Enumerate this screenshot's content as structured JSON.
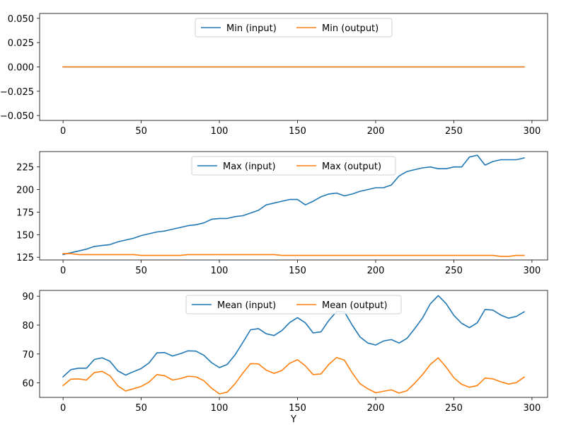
{
  "chart_data": [
    {
      "type": "line",
      "title": "",
      "xlabel": "",
      "ylabel": "",
      "xlim": [
        -15,
        310
      ],
      "ylim": [
        -0.055,
        0.055
      ],
      "xticks": [
        0,
        50,
        100,
        150,
        200,
        250,
        300
      ],
      "yticks": [
        -0.05,
        -0.025,
        0.0,
        0.025,
        0.05
      ],
      "ytick_labels": [
        "−0.050",
        "−0.025",
        "0.000",
        "0.025",
        "0.050"
      ],
      "legend_position": "top-center",
      "series": [
        {
          "name": "Min (input)",
          "color": "#1f77b4",
          "x": [
            0,
            295
          ],
          "y": [
            0,
            0
          ]
        },
        {
          "name": "Min (output)",
          "color": "#ff7f0e",
          "x": [
            0,
            295
          ],
          "y": [
            0,
            0
          ]
        }
      ]
    },
    {
      "type": "line",
      "title": "",
      "xlabel": "",
      "ylabel": "",
      "xlim": [
        -15,
        310
      ],
      "ylim": [
        122,
        242
      ],
      "xticks": [
        0,
        50,
        100,
        150,
        200,
        250,
        300
      ],
      "yticks": [
        125,
        150,
        175,
        200,
        225
      ],
      "ytick_labels": [
        "125",
        "150",
        "175",
        "200",
        "225"
      ],
      "legend_position": "top-center",
      "series": [
        {
          "name": "Max (input)",
          "color": "#1f77b4",
          "x": [
            0,
            5,
            10,
            15,
            20,
            25,
            30,
            35,
            40,
            45,
            50,
            55,
            60,
            65,
            70,
            75,
            80,
            85,
            90,
            95,
            100,
            105,
            110,
            115,
            120,
            125,
            130,
            135,
            140,
            145,
            150,
            155,
            160,
            165,
            170,
            175,
            180,
            185,
            190,
            195,
            200,
            205,
            210,
            215,
            220,
            225,
            230,
            235,
            240,
            245,
            250,
            255,
            260,
            265,
            270,
            275,
            280,
            285,
            290,
            295
          ],
          "y": [
            128,
            130,
            132,
            134,
            137,
            138,
            139,
            142,
            144,
            146,
            149,
            151,
            153,
            154,
            156,
            158,
            160,
            161,
            163,
            167,
            168,
            168,
            170,
            171,
            174,
            177,
            183,
            185,
            187,
            189,
            189,
            183,
            187,
            192,
            195,
            196,
            193,
            195,
            198,
            200,
            202,
            202,
            205,
            215,
            220,
            222,
            224,
            225,
            223,
            223,
            225,
            225,
            236,
            238,
            227,
            231,
            233,
            233,
            233,
            235
          ]
        },
        {
          "name": "Max (output)",
          "color": "#ff7f0e",
          "x": [
            0,
            5,
            10,
            15,
            20,
            25,
            30,
            35,
            40,
            45,
            50,
            55,
            60,
            65,
            70,
            75,
            80,
            85,
            90,
            95,
            100,
            105,
            110,
            115,
            120,
            125,
            130,
            135,
            140,
            145,
            150,
            155,
            160,
            165,
            170,
            175,
            180,
            185,
            190,
            195,
            200,
            205,
            210,
            215,
            220,
            225,
            230,
            235,
            240,
            245,
            250,
            255,
            260,
            265,
            270,
            275,
            280,
            285,
            290,
            295
          ],
          "y": [
            129,
            129,
            128,
            128,
            128,
            128,
            128,
            128,
            128,
            128,
            127,
            127,
            127,
            127,
            127,
            127,
            128,
            128,
            128,
            128,
            128,
            128,
            128,
            128,
            128,
            128,
            128,
            128,
            127,
            127,
            127,
            127,
            127,
            127,
            127,
            127,
            127,
            127,
            127,
            127,
            127,
            127,
            127,
            127,
            127,
            127,
            127,
            127,
            127,
            127,
            127,
            127,
            127,
            127,
            127,
            127,
            126,
            126,
            127,
            127
          ]
        }
      ]
    },
    {
      "type": "line",
      "title": "",
      "xlabel": "Y",
      "ylabel": "",
      "xlim": [
        -15,
        310
      ],
      "ylim": [
        55,
        92
      ],
      "xticks": [
        0,
        50,
        100,
        150,
        200,
        250,
        300
      ],
      "yticks": [
        60,
        70,
        80,
        90
      ],
      "ytick_labels": [
        "60",
        "70",
        "80",
        "90"
      ],
      "legend_position": "top-center",
      "series": [
        {
          "name": "Mean (input)",
          "color": "#1f77b4",
          "x": [
            0,
            5,
            10,
            15,
            20,
            25,
            30,
            35,
            40,
            45,
            50,
            55,
            60,
            65,
            70,
            75,
            80,
            85,
            90,
            95,
            100,
            105,
            110,
            115,
            120,
            125,
            130,
            135,
            140,
            145,
            150,
            155,
            160,
            165,
            170,
            175,
            180,
            185,
            190,
            195,
            200,
            205,
            210,
            215,
            220,
            225,
            230,
            235,
            240,
            245,
            250,
            255,
            260,
            265,
            270,
            275,
            280,
            285,
            290,
            295
          ],
          "y": [
            62.1,
            64.6,
            65.1,
            65.1,
            68.1,
            68.7,
            67.5,
            64.2,
            62.7,
            63.9,
            65.0,
            66.9,
            70.4,
            70.5,
            69.3,
            70.1,
            71.1,
            71.0,
            69.6,
            67.0,
            65.3,
            66.4,
            69.7,
            74.0,
            78.4,
            78.8,
            77.0,
            76.4,
            78.1,
            80.9,
            82.6,
            80.8,
            77.3,
            77.7,
            81.6,
            84.7,
            84.6,
            80.0,
            75.9,
            73.8,
            73.1,
            74.5,
            75.0,
            73.8,
            75.4,
            78.8,
            82.5,
            87.4,
            90.2,
            87.5,
            83.4,
            80.6,
            79.1,
            80.8,
            85.4,
            85.2,
            83.5,
            82.4,
            83.0,
            84.6
          ]
        },
        {
          "name": "Mean (output)",
          "color": "#ff7f0e",
          "x": [
            0,
            5,
            10,
            15,
            20,
            25,
            30,
            35,
            40,
            45,
            50,
            55,
            60,
            65,
            70,
            75,
            80,
            85,
            90,
            95,
            100,
            105,
            110,
            115,
            120,
            125,
            130,
            135,
            140,
            145,
            150,
            155,
            160,
            165,
            170,
            175,
            180,
            185,
            190,
            195,
            200,
            205,
            210,
            215,
            220,
            225,
            230,
            235,
            240,
            245,
            250,
            255,
            260,
            265,
            270,
            275,
            280,
            285,
            290,
            295
          ],
          "y": [
            59.1,
            61.3,
            61.4,
            61.0,
            63.6,
            64.0,
            62.5,
            59.0,
            57.2,
            58.0,
            58.8,
            60.3,
            62.9,
            62.5,
            61.0,
            61.5,
            62.3,
            62.1,
            60.8,
            58.2,
            56.2,
            56.8,
            59.7,
            63.4,
            66.7,
            66.6,
            64.4,
            63.3,
            64.3,
            66.8,
            68.0,
            65.9,
            62.9,
            63.1,
            66.4,
            68.8,
            67.9,
            63.5,
            59.7,
            58.0,
            56.6,
            57.1,
            57.6,
            56.5,
            57.3,
            59.9,
            62.9,
            66.4,
            68.7,
            65.5,
            61.8,
            59.5,
            58.5,
            59.1,
            61.7,
            61.4,
            60.4,
            59.6,
            60.1,
            62.0
          ]
        }
      ]
    }
  ]
}
